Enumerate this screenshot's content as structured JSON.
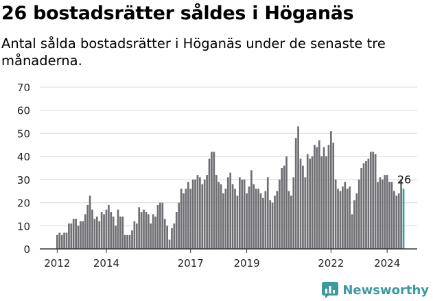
{
  "header": {
    "title": "26 bostadsrätter såldes i Höganäs",
    "subtitle": "Antal sålda bostadsrätter i Höganäs under de senaste tre månaderna."
  },
  "brand": {
    "name": "Newsworthy",
    "icon": "newsworthy-logo-icon"
  },
  "colors": {
    "bar": "#6f6e73",
    "highlight": "#3b9a9e",
    "grid": "#d9d9d9",
    "axis": "#333333"
  },
  "chart_data": {
    "type": "bar",
    "title": "",
    "xlabel": "",
    "ylabel": "",
    "ylim": [
      0,
      70
    ],
    "yticks": [
      0,
      10,
      20,
      30,
      40,
      50,
      60,
      70
    ],
    "xticks": [
      {
        "label": "2012",
        "index": 0
      },
      {
        "label": "2014",
        "index": 21
      },
      {
        "label": "2017",
        "index": 57
      },
      {
        "label": "2019",
        "index": 81
      },
      {
        "label": "2022",
        "index": 117
      },
      {
        "label": "2024",
        "index": 141
      }
    ],
    "grid": true,
    "legend": "none",
    "start_period": "2011-12",
    "values": [
      6,
      7,
      6,
      7,
      7,
      11,
      11,
      13,
      13,
      10,
      12,
      12,
      15,
      19,
      23,
      17,
      13,
      14,
      12,
      16,
      15,
      17,
      19,
      16,
      14,
      10,
      17,
      14,
      14,
      6,
      6,
      6,
      8,
      12,
      11,
      18,
      16,
      17,
      16,
      15,
      11,
      15,
      14,
      19,
      20,
      20,
      13,
      10,
      4,
      9,
      11,
      16,
      20,
      26,
      24,
      26,
      29,
      26,
      30,
      30,
      32,
      31,
      28,
      30,
      32,
      39,
      42,
      42,
      32,
      29,
      28,
      24,
      26,
      31,
      33,
      28,
      26,
      23,
      31,
      30,
      30,
      24,
      27,
      34,
      28,
      26,
      26,
      24,
      22,
      25,
      31,
      21,
      20,
      23,
      25,
      30,
      35,
      36,
      40,
      25,
      23,
      31,
      48,
      53,
      39,
      36,
      31,
      41,
      39,
      40,
      45,
      44,
      47,
      40,
      44,
      40,
      45,
      51,
      46,
      30,
      26,
      25,
      27,
      29,
      26,
      27,
      15,
      21,
      24,
      30,
      35,
      37,
      38,
      39,
      42,
      42,
      41,
      29,
      31,
      30,
      32,
      32,
      29,
      29,
      25,
      23,
      24,
      30,
      26
    ],
    "last_value_label": "26"
  }
}
